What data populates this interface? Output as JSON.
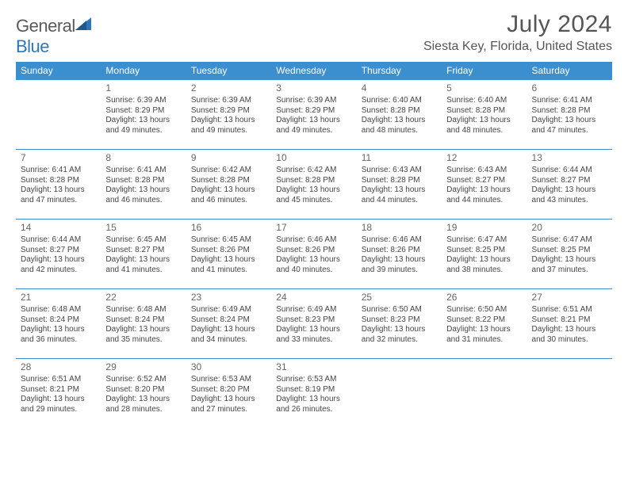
{
  "brand": {
    "word1": "General",
    "word2": "Blue"
  },
  "title": "July 2024",
  "location": "Siesta Key, Florida, United States",
  "colors": {
    "header_bg": "#3c8fce",
    "border": "#3c8fce",
    "text": "#444444"
  },
  "dow": [
    "Sunday",
    "Monday",
    "Tuesday",
    "Wednesday",
    "Thursday",
    "Friday",
    "Saturday"
  ],
  "weeks": [
    [
      null,
      {
        "n": "1",
        "sr": "Sunrise: 6:39 AM",
        "ss": "Sunset: 8:29 PM",
        "dl": "Daylight: 13 hours and 49 minutes."
      },
      {
        "n": "2",
        "sr": "Sunrise: 6:39 AM",
        "ss": "Sunset: 8:29 PM",
        "dl": "Daylight: 13 hours and 49 minutes."
      },
      {
        "n": "3",
        "sr": "Sunrise: 6:39 AM",
        "ss": "Sunset: 8:29 PM",
        "dl": "Daylight: 13 hours and 49 minutes."
      },
      {
        "n": "4",
        "sr": "Sunrise: 6:40 AM",
        "ss": "Sunset: 8:28 PM",
        "dl": "Daylight: 13 hours and 48 minutes."
      },
      {
        "n": "5",
        "sr": "Sunrise: 6:40 AM",
        "ss": "Sunset: 8:28 PM",
        "dl": "Daylight: 13 hours and 48 minutes."
      },
      {
        "n": "6",
        "sr": "Sunrise: 6:41 AM",
        "ss": "Sunset: 8:28 PM",
        "dl": "Daylight: 13 hours and 47 minutes."
      }
    ],
    [
      {
        "n": "7",
        "sr": "Sunrise: 6:41 AM",
        "ss": "Sunset: 8:28 PM",
        "dl": "Daylight: 13 hours and 47 minutes."
      },
      {
        "n": "8",
        "sr": "Sunrise: 6:41 AM",
        "ss": "Sunset: 8:28 PM",
        "dl": "Daylight: 13 hours and 46 minutes."
      },
      {
        "n": "9",
        "sr": "Sunrise: 6:42 AM",
        "ss": "Sunset: 8:28 PM",
        "dl": "Daylight: 13 hours and 46 minutes."
      },
      {
        "n": "10",
        "sr": "Sunrise: 6:42 AM",
        "ss": "Sunset: 8:28 PM",
        "dl": "Daylight: 13 hours and 45 minutes."
      },
      {
        "n": "11",
        "sr": "Sunrise: 6:43 AM",
        "ss": "Sunset: 8:28 PM",
        "dl": "Daylight: 13 hours and 44 minutes."
      },
      {
        "n": "12",
        "sr": "Sunrise: 6:43 AM",
        "ss": "Sunset: 8:27 PM",
        "dl": "Daylight: 13 hours and 44 minutes."
      },
      {
        "n": "13",
        "sr": "Sunrise: 6:44 AM",
        "ss": "Sunset: 8:27 PM",
        "dl": "Daylight: 13 hours and 43 minutes."
      }
    ],
    [
      {
        "n": "14",
        "sr": "Sunrise: 6:44 AM",
        "ss": "Sunset: 8:27 PM",
        "dl": "Daylight: 13 hours and 42 minutes."
      },
      {
        "n": "15",
        "sr": "Sunrise: 6:45 AM",
        "ss": "Sunset: 8:27 PM",
        "dl": "Daylight: 13 hours and 41 minutes."
      },
      {
        "n": "16",
        "sr": "Sunrise: 6:45 AM",
        "ss": "Sunset: 8:26 PM",
        "dl": "Daylight: 13 hours and 41 minutes."
      },
      {
        "n": "17",
        "sr": "Sunrise: 6:46 AM",
        "ss": "Sunset: 8:26 PM",
        "dl": "Daylight: 13 hours and 40 minutes."
      },
      {
        "n": "18",
        "sr": "Sunrise: 6:46 AM",
        "ss": "Sunset: 8:26 PM",
        "dl": "Daylight: 13 hours and 39 minutes."
      },
      {
        "n": "19",
        "sr": "Sunrise: 6:47 AM",
        "ss": "Sunset: 8:25 PM",
        "dl": "Daylight: 13 hours and 38 minutes."
      },
      {
        "n": "20",
        "sr": "Sunrise: 6:47 AM",
        "ss": "Sunset: 8:25 PM",
        "dl": "Daylight: 13 hours and 37 minutes."
      }
    ],
    [
      {
        "n": "21",
        "sr": "Sunrise: 6:48 AM",
        "ss": "Sunset: 8:24 PM",
        "dl": "Daylight: 13 hours and 36 minutes."
      },
      {
        "n": "22",
        "sr": "Sunrise: 6:48 AM",
        "ss": "Sunset: 8:24 PM",
        "dl": "Daylight: 13 hours and 35 minutes."
      },
      {
        "n": "23",
        "sr": "Sunrise: 6:49 AM",
        "ss": "Sunset: 8:24 PM",
        "dl": "Daylight: 13 hours and 34 minutes."
      },
      {
        "n": "24",
        "sr": "Sunrise: 6:49 AM",
        "ss": "Sunset: 8:23 PM",
        "dl": "Daylight: 13 hours and 33 minutes."
      },
      {
        "n": "25",
        "sr": "Sunrise: 6:50 AM",
        "ss": "Sunset: 8:23 PM",
        "dl": "Daylight: 13 hours and 32 minutes."
      },
      {
        "n": "26",
        "sr": "Sunrise: 6:50 AM",
        "ss": "Sunset: 8:22 PM",
        "dl": "Daylight: 13 hours and 31 minutes."
      },
      {
        "n": "27",
        "sr": "Sunrise: 6:51 AM",
        "ss": "Sunset: 8:21 PM",
        "dl": "Daylight: 13 hours and 30 minutes."
      }
    ],
    [
      {
        "n": "28",
        "sr": "Sunrise: 6:51 AM",
        "ss": "Sunset: 8:21 PM",
        "dl": "Daylight: 13 hours and 29 minutes."
      },
      {
        "n": "29",
        "sr": "Sunrise: 6:52 AM",
        "ss": "Sunset: 8:20 PM",
        "dl": "Daylight: 13 hours and 28 minutes."
      },
      {
        "n": "30",
        "sr": "Sunrise: 6:53 AM",
        "ss": "Sunset: 8:20 PM",
        "dl": "Daylight: 13 hours and 27 minutes."
      },
      {
        "n": "31",
        "sr": "Sunrise: 6:53 AM",
        "ss": "Sunset: 8:19 PM",
        "dl": "Daylight: 13 hours and 26 minutes."
      },
      null,
      null,
      null
    ]
  ]
}
